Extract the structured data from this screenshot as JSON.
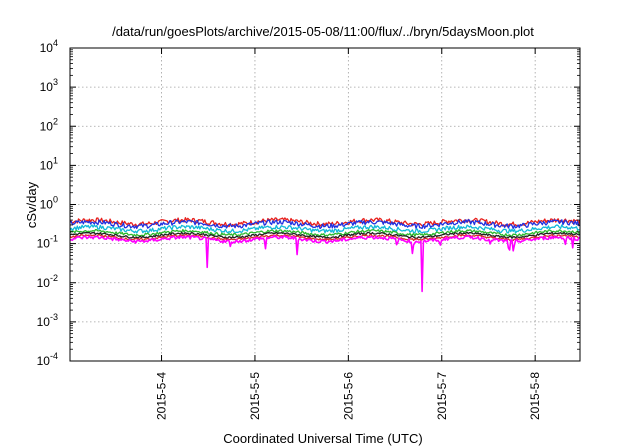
{
  "chart_data": {
    "type": "line",
    "title": "/data/run/goesPlots/archive/2015-05-08/11:00/flux/../bryn/5daysMoon.plot",
    "xlabel": "Coordinated Universal Time (UTC)",
    "ylabel": "cSv/day",
    "yscale": "log",
    "ylim": [
      0.0001,
      10000
    ],
    "xlim": [
      3.02,
      8.48
    ],
    "grid": true,
    "x_ticks": [
      {
        "value": 4,
        "label": "2015-5-4"
      },
      {
        "value": 5,
        "label": "2015-5-5"
      },
      {
        "value": 6,
        "label": "2015-5-6"
      },
      {
        "value": 7,
        "label": "2015-5-7"
      },
      {
        "value": 8,
        "label": "2015-5-8"
      }
    ],
    "y_ticks": [
      {
        "value": 0.0001,
        "base": "10",
        "exp": "-4"
      },
      {
        "value": 0.001,
        "base": "10",
        "exp": "-3"
      },
      {
        "value": 0.01,
        "base": "10",
        "exp": "-2"
      },
      {
        "value": 0.1,
        "base": "10",
        "exp": "-1"
      },
      {
        "value": 1,
        "base": "10",
        "exp": "0"
      },
      {
        "value": 10,
        "base": "10",
        "exp": "1"
      },
      {
        "value": 100,
        "base": "10",
        "exp": "2"
      },
      {
        "value": 1000,
        "base": "10",
        "exp": "3"
      },
      {
        "value": 10000,
        "base": "10",
        "exp": "4"
      }
    ],
    "series": [
      {
        "color": "#e8201c",
        "base": 0.36,
        "amp": 0.14
      },
      {
        "color": "#2030e0",
        "base": 0.32,
        "amp": 0.14
      },
      {
        "color": "#10b8d8",
        "base": 0.24,
        "amp": 0.12
      },
      {
        "color": "#2cb82c",
        "base": 0.19,
        "amp": 0.08
      },
      {
        "color": "#202020",
        "base": 0.165,
        "amp": 0.06
      },
      {
        "color": "#d82a2a",
        "base": 0.145,
        "amp": 0.06
      },
      {
        "color": "#ff00ff",
        "base": 0.13,
        "amp": 0.1,
        "dips": [
          [
            4.49,
            0.014
          ],
          [
            4.74,
            0.07
          ],
          [
            5.11,
            0.05
          ],
          [
            5.45,
            0.045
          ],
          [
            6.52,
            0.08
          ],
          [
            6.69,
            0.022
          ],
          [
            6.79,
            0.006
          ],
          [
            6.98,
            0.06
          ],
          [
            7.52,
            0.09
          ],
          [
            7.72,
            0.03
          ],
          [
            7.77,
            0.025
          ],
          [
            8.32,
            0.07
          ],
          [
            8.4,
            0.065
          ]
        ]
      }
    ]
  }
}
